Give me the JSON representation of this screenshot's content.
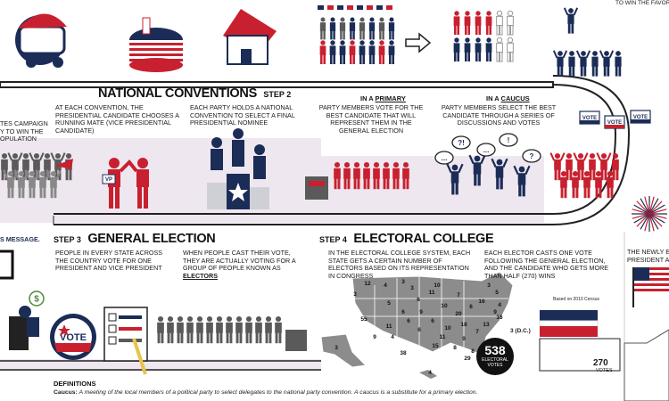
{
  "top_right_fragment": "TO WIN THE FAVOR OF TH",
  "national_conventions": {
    "title": "NATIONAL CONVENTIONS",
    "step": "STEP 2",
    "text_left": "AT EACH CONVENTION, THE PRESIDENTIAL CANDIDATE CHOOSES A RUNNING MATE (VICE PRESIDENTIAL CANDIDATE)",
    "text_right": "EACH PARTY HOLDS A NATIONAL CONVENTION TO SELECT A FINAL PRESIDENTIAL NOMINEE",
    "vp_label": "VP"
  },
  "left_fragment": {
    "line1": "TES CAMPAIGN",
    "line2": "Y TO WIN THE",
    "line3": "OPULATION"
  },
  "primary": {
    "prefix": "IN A",
    "name": "PRIMARY",
    "text": "PARTY MEMBERS VOTE FOR THE BEST CANDIDATE THAT WILL REPRESENT THEM IN THE GENERAL ELECTION"
  },
  "caucus": {
    "prefix": "IN A",
    "name": "CAUCUS",
    "text": "PARTY MEMBERS SELECT THE BEST CANDIDATE THROUGH A SERIES OF DISCUSSIONS AND VOTES",
    "bubbles": [
      "...",
      "?!",
      "!",
      "...",
      "?"
    ]
  },
  "vote_signs": [
    "VOTE",
    "VOTE",
    "VOTE"
  ],
  "message_fragment": "S MESSAGE.",
  "dollar": "$",
  "general_election": {
    "step": "STEP 3",
    "title": "GENERAL ELECTION",
    "text_left": "PEOPLE IN EVERY STATE ACROSS THE COUNTRY VOTE FOR ONE PRESIDENT AND VICE PRESIDENT",
    "text_right_1": "WHEN PEOPLE CAST THEIR VOTE, THEY ARE ACTUALLY VOTING FOR A GROUP OF PEOPLE KNOWN AS",
    "text_right_em": "ELECTORS",
    "button_label": "VOTE"
  },
  "electoral_college": {
    "step": "STEP 4",
    "title": "ELECTORAL COLLEGE",
    "text_left": "IN THE ELECTORAL COLLEGE SYSTEM, EACH STATE GETS A CERTAIN NUMBER OF ELECTORS BASED ON ITS REPRESENTATION IN CONGRESS",
    "text_right": "EACH ELECTOR CASTS ONE VOTE FOLLOWING THE GENERAL ELECTION, AND THE CANDIDATE WHO GETS MORE THAN HALF (270) WINS",
    "census_note": "Based on 2010 Census",
    "total_number": "538",
    "total_label_1": "ELECTORAL",
    "total_label_2": "VOTES",
    "dc_label": "3 (D.C.)",
    "win_number": "270",
    "win_label": "VOTES",
    "state_numbers": [
      "12",
      "3",
      "4",
      "3",
      "3",
      "10",
      "7",
      "16",
      "6",
      "3",
      "5",
      "9",
      "11",
      "6",
      "5",
      "6",
      "10",
      "20",
      "18",
      "11",
      "55",
      "9",
      "6",
      "4",
      "6",
      "10",
      "11",
      "15",
      "7",
      "9",
      "8",
      "8",
      "13",
      "16",
      "38",
      "29",
      "3",
      "4",
      "6",
      "9",
      "29",
      "4"
    ]
  },
  "newly_fragment": {
    "line1": "THE NEWLY EL",
    "line2": "PRESIDENT A"
  },
  "definitions": {
    "heading": "DEFINITIONS",
    "term": "Caucus:",
    "text": "A meeting of the local members of a political party to select delegates to the national party convention. A caucus is a substitute for a primary election."
  },
  "colors": {
    "red": "#c8202f",
    "navy": "#1b2c57",
    "gray": "#5a5a5a",
    "band": "#e9e0ea"
  }
}
